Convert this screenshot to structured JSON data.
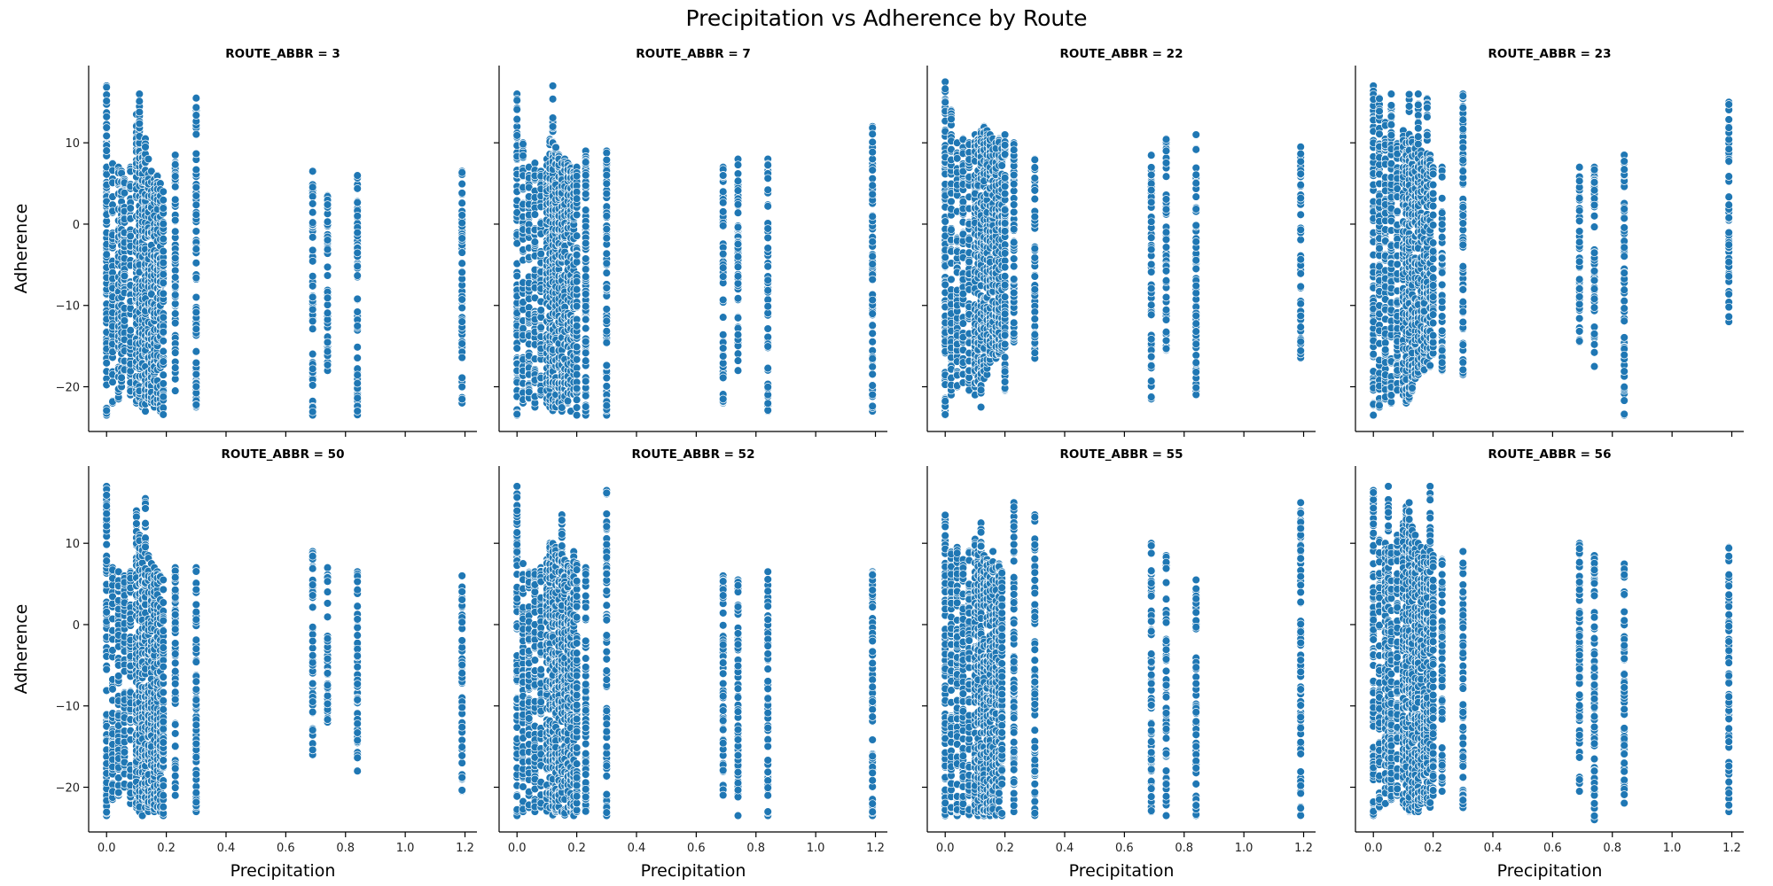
{
  "figure": {
    "title": "Precipitation vs Adherence by Route"
  },
  "chart_data": {
    "type": "scatter",
    "title": "Precipitation vs Adherence by Route",
    "xlabel": "Precipitation",
    "ylabel": "Adherence",
    "xlim": [
      -0.06,
      1.24
    ],
    "ylim": [
      -25.5,
      19.5
    ],
    "xticks": [
      0.0,
      0.2,
      0.4,
      0.6,
      0.8,
      1.0,
      1.2
    ],
    "xtick_labels": [
      "0.0",
      "0.2",
      "0.4",
      "0.6",
      "0.8",
      "1.0",
      "1.2"
    ],
    "yticks": [
      -20,
      -10,
      0,
      10
    ],
    "ytick_labels": [
      "−20",
      "−10",
      "0",
      "10"
    ],
    "grid": false,
    "legend": "none",
    "color": "#1f77b4",
    "layout": {
      "rows": 2,
      "cols": 4,
      "shared_axes": true
    },
    "precip_levels": [
      0.0,
      0.01,
      0.02,
      0.03,
      0.04,
      0.05,
      0.06,
      0.08,
      0.1,
      0.11,
      0.12,
      0.13,
      0.14,
      0.15,
      0.16,
      0.17,
      0.18,
      0.19,
      0.2,
      0.23,
      0.3,
      0.69,
      0.74,
      0.84,
      1.19
    ],
    "panels": [
      {
        "title": "ROUTE_ABBR = 3",
        "ranges": [
          [
            0.0,
            -23.5,
            17.0
          ],
          [
            0.02,
            -22.0,
            7.5
          ],
          [
            0.04,
            -21.5,
            7.0
          ],
          [
            0.05,
            -20.0,
            6.5
          ],
          [
            0.06,
            -18.0,
            5.5
          ],
          [
            0.08,
            -21.0,
            7.0
          ],
          [
            0.1,
            -22.0,
            13.5
          ],
          [
            0.11,
            -21.5,
            16.0
          ],
          [
            0.12,
            -22.5,
            8.5
          ],
          [
            0.13,
            -23.0,
            10.5
          ],
          [
            0.14,
            -21.5,
            8.0
          ],
          [
            0.15,
            -22.0,
            6.5
          ],
          [
            0.16,
            -22.5,
            5.5
          ],
          [
            0.17,
            -22.0,
            6.0
          ],
          [
            0.18,
            -23.0,
            5.0
          ],
          [
            0.19,
            -23.5,
            4.0
          ],
          [
            0.23,
            -20.5,
            8.5
          ],
          [
            0.3,
            -22.5,
            15.5
          ],
          [
            0.69,
            -23.5,
            6.5
          ],
          [
            0.74,
            -18.0,
            3.5
          ],
          [
            0.84,
            -23.5,
            6.0
          ],
          [
            1.19,
            -22.0,
            6.5
          ]
        ]
      },
      {
        "title": "ROUTE_ABBR = 7",
        "ranges": [
          [
            0.0,
            -23.5,
            16.0
          ],
          [
            0.02,
            -22.0,
            10.0
          ],
          [
            0.04,
            -21.5,
            7.0
          ],
          [
            0.06,
            -22.5,
            7.5
          ],
          [
            0.08,
            -21.0,
            6.5
          ],
          [
            0.1,
            -22.0,
            8.0
          ],
          [
            0.11,
            -22.5,
            10.5
          ],
          [
            0.12,
            -23.0,
            17.0
          ],
          [
            0.13,
            -22.5,
            9.5
          ],
          [
            0.14,
            -22.0,
            8.5
          ],
          [
            0.15,
            -23.0,
            7.5
          ],
          [
            0.16,
            -21.5,
            8.0
          ],
          [
            0.17,
            -22.0,
            7.5
          ],
          [
            0.18,
            -23.0,
            7.0
          ],
          [
            0.19,
            -21.0,
            6.5
          ],
          [
            0.2,
            -23.5,
            7.0
          ],
          [
            0.23,
            -23.5,
            9.0
          ],
          [
            0.3,
            -23.5,
            9.0
          ],
          [
            0.69,
            -22.0,
            7.0
          ],
          [
            0.74,
            -18.0,
            8.0
          ],
          [
            0.84,
            -23.0,
            8.0
          ],
          [
            1.19,
            -23.0,
            12.0
          ]
        ]
      },
      {
        "title": "ROUTE_ABBR = 22",
        "ranges": [
          [
            0.0,
            -23.5,
            17.5
          ],
          [
            0.02,
            -21.0,
            14.0
          ],
          [
            0.04,
            -20.0,
            10.0
          ],
          [
            0.06,
            -19.5,
            10.5
          ],
          [
            0.08,
            -20.5,
            10.0
          ],
          [
            0.1,
            -21.0,
            11.0
          ],
          [
            0.11,
            -19.5,
            10.5
          ],
          [
            0.12,
            -22.5,
            11.5
          ],
          [
            0.13,
            -19.0,
            12.0
          ],
          [
            0.14,
            -18.5,
            11.5
          ],
          [
            0.15,
            -17.0,
            11.0
          ],
          [
            0.16,
            -16.0,
            10.5
          ],
          [
            0.17,
            -16.5,
            10.0
          ],
          [
            0.18,
            -16.0,
            10.5
          ],
          [
            0.19,
            -15.5,
            9.5
          ],
          [
            0.2,
            -20.5,
            11.0
          ],
          [
            0.23,
            -14.5,
            10.0
          ],
          [
            0.3,
            -16.5,
            8.0
          ],
          [
            0.69,
            -21.5,
            8.5
          ],
          [
            0.74,
            -15.5,
            10.5
          ],
          [
            0.84,
            -21.0,
            11.0
          ],
          [
            1.19,
            -16.5,
            9.5
          ]
        ]
      },
      {
        "title": "ROUTE_ABBR = 23",
        "ranges": [
          [
            0.0,
            -23.5,
            17.0
          ],
          [
            0.02,
            -22.5,
            15.5
          ],
          [
            0.04,
            -21.5,
            12.5
          ],
          [
            0.06,
            -22.0,
            16.0
          ],
          [
            0.08,
            -20.5,
            10.0
          ],
          [
            0.1,
            -21.0,
            11.5
          ],
          [
            0.11,
            -22.0,
            10.0
          ],
          [
            0.12,
            -21.5,
            16.0
          ],
          [
            0.13,
            -20.5,
            10.5
          ],
          [
            0.14,
            -19.0,
            9.5
          ],
          [
            0.15,
            -18.5,
            16.0
          ],
          [
            0.16,
            -17.5,
            9.0
          ],
          [
            0.17,
            -18.0,
            8.0
          ],
          [
            0.18,
            -17.0,
            15.5
          ],
          [
            0.19,
            -17.5,
            8.5
          ],
          [
            0.2,
            -16.0,
            7.0
          ],
          [
            0.23,
            -18.0,
            7.0
          ],
          [
            0.3,
            -18.5,
            16.0
          ],
          [
            0.69,
            -14.5,
            7.0
          ],
          [
            0.74,
            -17.5,
            7.0
          ],
          [
            0.84,
            -23.5,
            8.5
          ],
          [
            1.19,
            -12.0,
            15.0
          ]
        ]
      },
      {
        "title": "ROUTE_ABBR = 50",
        "ranges": [
          [
            0.0,
            -23.5,
            17.0
          ],
          [
            0.02,
            -21.5,
            7.0
          ],
          [
            0.04,
            -21.0,
            6.5
          ],
          [
            0.06,
            -20.0,
            6.0
          ],
          [
            0.08,
            -22.0,
            6.5
          ],
          [
            0.1,
            -22.5,
            14.0
          ],
          [
            0.11,
            -23.0,
            11.0
          ],
          [
            0.12,
            -23.5,
            9.5
          ],
          [
            0.13,
            -22.5,
            15.5
          ],
          [
            0.14,
            -23.0,
            8.5
          ],
          [
            0.15,
            -22.0,
            7.5
          ],
          [
            0.16,
            -23.0,
            7.0
          ],
          [
            0.17,
            -22.5,
            6.5
          ],
          [
            0.18,
            -23.0,
            6.0
          ],
          [
            0.19,
            -23.5,
            5.5
          ],
          [
            0.23,
            -21.0,
            7.0
          ],
          [
            0.3,
            -23.0,
            7.0
          ],
          [
            0.69,
            -16.0,
            9.0
          ],
          [
            0.74,
            -12.0,
            7.0
          ],
          [
            0.84,
            -18.0,
            6.5
          ],
          [
            1.19,
            -20.5,
            6.0
          ]
        ]
      },
      {
        "title": "ROUTE_ABBR = 52",
        "ranges": [
          [
            0.0,
            -23.5,
            17.0
          ],
          [
            0.02,
            -23.0,
            7.5
          ],
          [
            0.04,
            -22.5,
            6.5
          ],
          [
            0.06,
            -23.0,
            6.5
          ],
          [
            0.08,
            -22.5,
            7.0
          ],
          [
            0.1,
            -23.0,
            8.0
          ],
          [
            0.11,
            -22.5,
            10.0
          ],
          [
            0.12,
            -23.5,
            10.0
          ],
          [
            0.13,
            -23.0,
            9.5
          ],
          [
            0.14,
            -22.5,
            8.5
          ],
          [
            0.15,
            -23.0,
            13.5
          ],
          [
            0.16,
            -23.5,
            8.0
          ],
          [
            0.17,
            -22.5,
            7.5
          ],
          [
            0.18,
            -23.0,
            7.0
          ],
          [
            0.19,
            -23.5,
            9.0
          ],
          [
            0.2,
            -23.0,
            7.5
          ],
          [
            0.23,
            -23.0,
            7.0
          ],
          [
            0.3,
            -23.5,
            16.5
          ],
          [
            0.69,
            -21.0,
            6.0
          ],
          [
            0.74,
            -23.5,
            5.5
          ],
          [
            0.84,
            -23.5,
            6.5
          ],
          [
            1.19,
            -23.5,
            6.5
          ]
        ]
      },
      {
        "title": "ROUTE_ABBR = 55",
        "ranges": [
          [
            0.0,
            -23.5,
            13.5
          ],
          [
            0.02,
            -23.0,
            9.0
          ],
          [
            0.04,
            -23.5,
            9.5
          ],
          [
            0.06,
            -23.0,
            8.0
          ],
          [
            0.08,
            -23.5,
            9.0
          ],
          [
            0.1,
            -23.0,
            10.5
          ],
          [
            0.11,
            -23.5,
            9.0
          ],
          [
            0.12,
            -23.0,
            12.5
          ],
          [
            0.13,
            -23.5,
            8.5
          ],
          [
            0.14,
            -23.0,
            8.0
          ],
          [
            0.15,
            -23.5,
            7.5
          ],
          [
            0.16,
            -23.0,
            9.0
          ],
          [
            0.17,
            -23.5,
            7.0
          ],
          [
            0.18,
            -23.0,
            7.5
          ],
          [
            0.19,
            -23.5,
            6.5
          ],
          [
            0.23,
            -23.0,
            15.0
          ],
          [
            0.3,
            -23.5,
            13.5
          ],
          [
            0.69,
            -23.0,
            10.0
          ],
          [
            0.74,
            -23.5,
            8.5
          ],
          [
            0.84,
            -23.5,
            5.5
          ],
          [
            1.19,
            -23.5,
            15.0
          ]
        ]
      },
      {
        "title": "ROUTE_ABBR = 56",
        "ranges": [
          [
            0.0,
            -23.5,
            16.5
          ],
          [
            0.02,
            -22.5,
            10.5
          ],
          [
            0.04,
            -22.0,
            10.0
          ],
          [
            0.05,
            -20.0,
            17.0
          ],
          [
            0.06,
            -21.5,
            9.5
          ],
          [
            0.08,
            -21.0,
            11.0
          ],
          [
            0.1,
            -22.0,
            12.5
          ],
          [
            0.11,
            -22.5,
            14.5
          ],
          [
            0.12,
            -23.0,
            15.0
          ],
          [
            0.13,
            -22.5,
            12.0
          ],
          [
            0.14,
            -23.0,
            11.0
          ],
          [
            0.15,
            -23.0,
            10.0
          ],
          [
            0.16,
            -22.0,
            9.5
          ],
          [
            0.17,
            -21.5,
            9.0
          ],
          [
            0.18,
            -22.0,
            9.5
          ],
          [
            0.19,
            -22.5,
            17.0
          ],
          [
            0.2,
            -21.0,
            8.5
          ],
          [
            0.23,
            -20.5,
            8.0
          ],
          [
            0.3,
            -22.5,
            9.0
          ],
          [
            0.69,
            -20.5,
            10.0
          ],
          [
            0.74,
            -24.0,
            8.5
          ],
          [
            0.84,
            -22.0,
            7.5
          ],
          [
            1.19,
            -23.0,
            9.5
          ]
        ]
      }
    ]
  }
}
